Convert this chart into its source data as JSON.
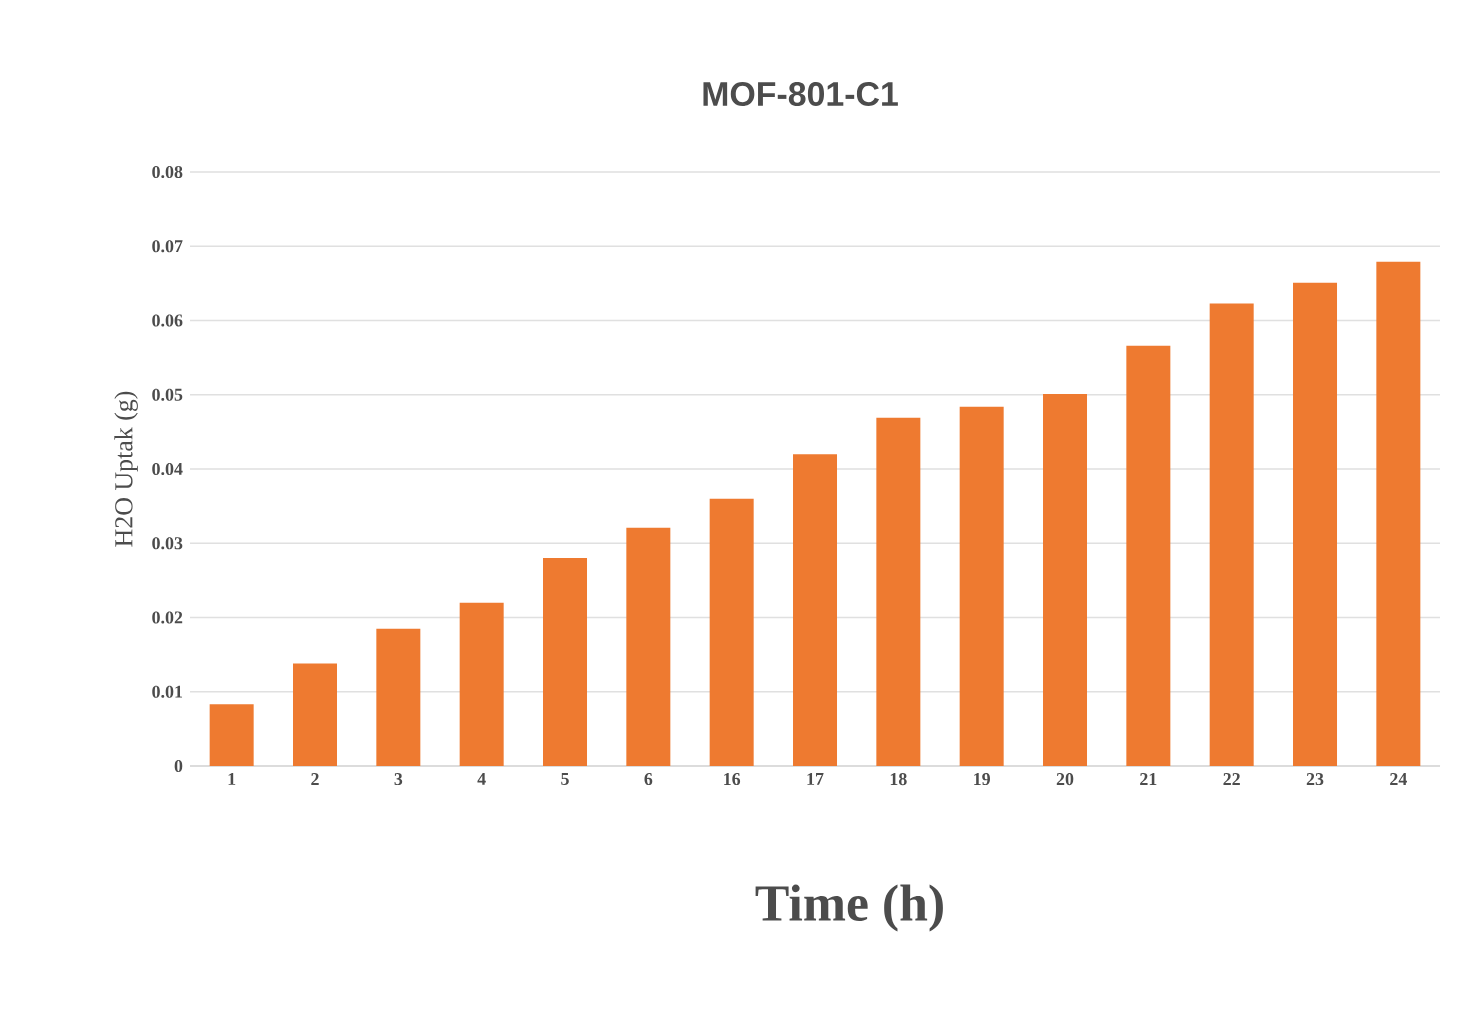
{
  "chart_data": {
    "type": "bar",
    "title": "MOF-801-C1",
    "xlabel": "Time (h)",
    "ylabel": "H2O Uptak (g)",
    "categories": [
      "1",
      "2",
      "3",
      "4",
      "5",
      "6",
      "16",
      "17",
      "18",
      "19",
      "20",
      "21",
      "22",
      "23",
      "24"
    ],
    "values": [
      0.0083,
      0.0138,
      0.0185,
      0.022,
      0.028,
      0.0321,
      0.036,
      0.042,
      0.0469,
      0.0484,
      0.0501,
      0.0566,
      0.0623,
      0.0651,
      0.0679
    ],
    "color": "#ee7a30",
    "ylim": [
      0,
      0.08
    ],
    "yticks": [
      0,
      0.01,
      0.02,
      0.03,
      0.04,
      0.05,
      0.06,
      0.07,
      0.08
    ],
    "grid": "y"
  }
}
